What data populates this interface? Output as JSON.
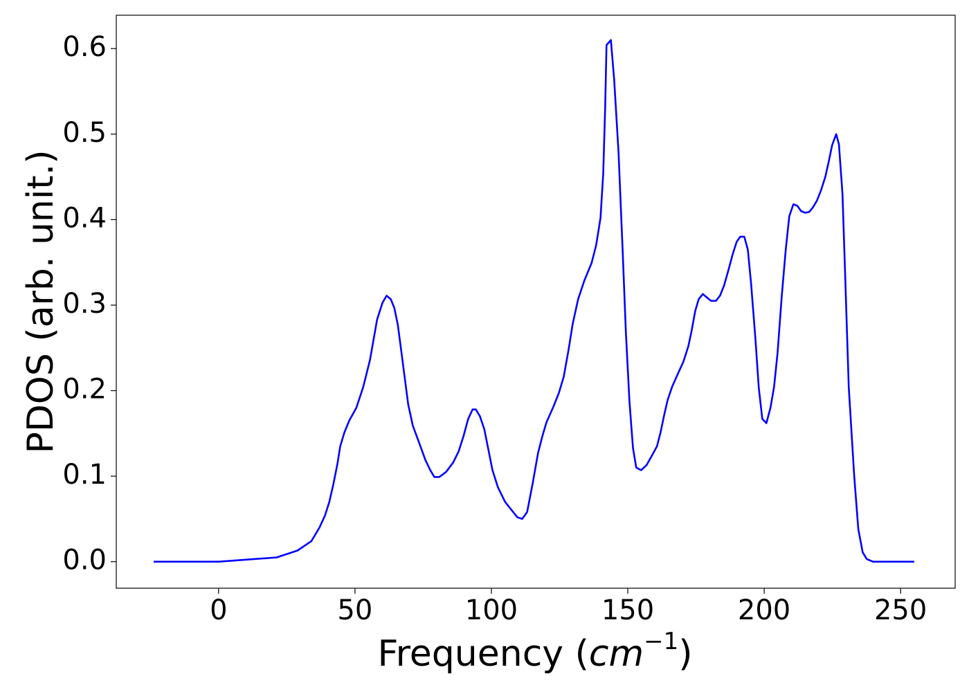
{
  "chart_data": {
    "type": "line",
    "x_label_parts": [
      "Frequency (",
      "cm",
      "−1",
      ")"
    ],
    "y_label": "PDOS (arb. unit.)",
    "xlim": [
      -37.5,
      270
    ],
    "ylim": [
      -0.031,
      0.639
    ],
    "xticks": [
      0,
      50,
      100,
      150,
      200,
      250
    ],
    "yticks": [
      {
        "value": 0,
        "label": "0.0"
      },
      0.1,
      0.2,
      0.3,
      0.4,
      0.5,
      0.6
    ],
    "x": [
      -23.8,
      0,
      21.3,
      28.9,
      34.0,
      37.0,
      39.0,
      40.6,
      42.1,
      43.6,
      44.6,
      46.1,
      47.9,
      50.5,
      53.0,
      55.5,
      58.1,
      60.1,
      61.6,
      63.1,
      64.4,
      65.7,
      66.9,
      68.2,
      69.5,
      71.2,
      73.3,
      75.8,
      77.6,
      79.1,
      80.9,
      83.4,
      86.0,
      88.0,
      89.8,
      91.5,
      93.1,
      94.3,
      95.8,
      97.4,
      98.9,
      100.4,
      102.4,
      105.0,
      107.5,
      109.5,
      111.3,
      113.1,
      115.1,
      117.1,
      118.7,
      120.2,
      122.7,
      124.7,
      126.5,
      128.3,
      129.8,
      131.8,
      134.1,
      136.7,
      138.4,
      140.0,
      141.0,
      141.7,
      142.2,
      143.8,
      145.0,
      146.6,
      148.1,
      149.3,
      150.6,
      151.9,
      153.1,
      154.9,
      156.9,
      159.0,
      160.7,
      162.0,
      163.3,
      164.6,
      166.3,
      168.4,
      170.4,
      172.2,
      173.4,
      174.7,
      176.0,
      177.5,
      179.0,
      180.5,
      182.3,
      183.8,
      185.3,
      186.9,
      188.4,
      189.9,
      191.2,
      192.7,
      194.0,
      195.2,
      196.8,
      198.0,
      199.3,
      200.8,
      202.3,
      203.6,
      204.9,
      206.4,
      207.9,
      209.2,
      210.7,
      212.2,
      213.5,
      215.0,
      216.5,
      217.8,
      219.3,
      220.8,
      222.4,
      223.6,
      224.9,
      226.4,
      227.4,
      228.7,
      229.7,
      231.0,
      233.0,
      234.5,
      236.1,
      237.6,
      239.9,
      255
    ],
    "series": [
      {
        "color": "#0000ff",
        "values": [
          0,
          0,
          0.005,
          0.013,
          0.024,
          0.04,
          0.054,
          0.07,
          0.091,
          0.115,
          0.135,
          0.151,
          0.165,
          0.18,
          0.204,
          0.236,
          0.283,
          0.303,
          0.311,
          0.307,
          0.297,
          0.277,
          0.248,
          0.216,
          0.184,
          0.159,
          0.141,
          0.119,
          0.107,
          0.099,
          0.099,
          0.105,
          0.116,
          0.129,
          0.147,
          0.167,
          0.178,
          0.178,
          0.17,
          0.155,
          0.131,
          0.107,
          0.087,
          0.07,
          0.06,
          0.052,
          0.05,
          0.058,
          0.091,
          0.127,
          0.147,
          0.163,
          0.181,
          0.197,
          0.216,
          0.248,
          0.278,
          0.307,
          0.329,
          0.349,
          0.37,
          0.402,
          0.454,
          0.53,
          0.604,
          0.61,
          0.564,
          0.479,
          0.365,
          0.268,
          0.188,
          0.133,
          0.11,
          0.107,
          0.113,
          0.125,
          0.135,
          0.151,
          0.171,
          0.189,
          0.205,
          0.22,
          0.234,
          0.252,
          0.27,
          0.293,
          0.307,
          0.313,
          0.309,
          0.305,
          0.305,
          0.311,
          0.323,
          0.341,
          0.359,
          0.374,
          0.38,
          0.38,
          0.365,
          0.325,
          0.26,
          0.204,
          0.167,
          0.162,
          0.18,
          0.204,
          0.244,
          0.309,
          0.365,
          0.404,
          0.418,
          0.416,
          0.41,
          0.408,
          0.409,
          0.414,
          0.422,
          0.434,
          0.45,
          0.467,
          0.487,
          0.5,
          0.488,
          0.43,
          0.333,
          0.204,
          0.1,
          0.038,
          0.011,
          0.003,
          0,
          0
        ]
      }
    ]
  }
}
